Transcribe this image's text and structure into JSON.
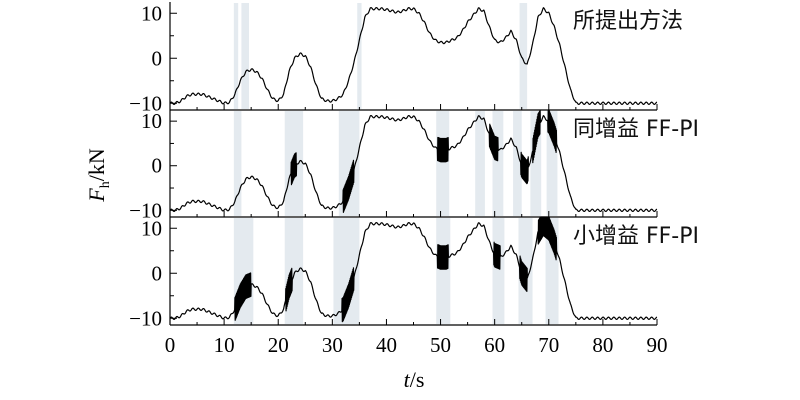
{
  "chart_data": {
    "type": "line",
    "xlabel": {
      "var": "t",
      "unit": "/s"
    },
    "ylabel": {
      "var": "F",
      "sub": "h",
      "unit": "/kN"
    },
    "x_ticks": [
      0,
      10,
      20,
      30,
      40,
      50,
      60,
      70,
      80,
      90
    ],
    "xlim": [
      0,
      90
    ],
    "y_ticks": [
      -10,
      0,
      10
    ],
    "y_tick_labels": [
      "−10",
      "0",
      "10"
    ],
    "ylim": [
      -11.5,
      12.5
    ],
    "grid": false,
    "panels": [
      {
        "name": "所提出方法",
        "highlight_regions": [
          [
            11.8,
            12.6
          ],
          [
            13.2,
            14.6
          ],
          [
            34.6,
            35.4
          ],
          [
            64.6,
            66.0
          ]
        ],
        "chatter_regions": [],
        "series": {
          "x": [
            0,
            1,
            2,
            3,
            4,
            5,
            6,
            7,
            8,
            9,
            10,
            11,
            12,
            13,
            14,
            15,
            16,
            17,
            18,
            19,
            20,
            21,
            22,
            23,
            24,
            25,
            26,
            27,
            28,
            29,
            30,
            31,
            32,
            33,
            34,
            35,
            36,
            37,
            38,
            39,
            40,
            41,
            42,
            43,
            44,
            45,
            46,
            47,
            48,
            49,
            50,
            51,
            52,
            53,
            54,
            55,
            56,
            57,
            58,
            59,
            60,
            61,
            62,
            63,
            64,
            65,
            66,
            67,
            68,
            69,
            70,
            71,
            72,
            73,
            74,
            75,
            76,
            77,
            78,
            79,
            80,
            81,
            82,
            83,
            84,
            85,
            86,
            87,
            88,
            89,
            90
          ],
          "y": [
            -10,
            -10,
            -9.5,
            -8.5,
            -8,
            -8,
            -8,
            -8.5,
            -9,
            -9.5,
            -10,
            -9.8,
            -8,
            -5,
            -3,
            -2.5,
            -3,
            -4.5,
            -7,
            -9,
            -9.5,
            -8,
            -3,
            0,
            1,
            0.5,
            -2,
            -6,
            -9,
            -9.5,
            -9.5,
            -9,
            -8,
            -5,
            -1,
            4,
            9,
            11,
            11,
            11,
            10.8,
            10.5,
            10.2,
            10.5,
            11,
            11,
            10,
            8,
            5.5,
            4,
            3.5,
            3.5,
            4,
            4.5,
            6,
            8,
            9.5,
            11,
            10.5,
            7,
            4,
            3.5,
            4.5,
            6,
            4,
            0,
            -1.5,
            3,
            9,
            11,
            10,
            7,
            3,
            -2,
            -7,
            -10,
            -10,
            -10,
            -10,
            -10,
            -10,
            -10,
            -10,
            -10,
            -10,
            -10,
            -10,
            -10,
            -10,
            -10,
            -10
          ]
        }
      },
      {
        "name": "同增益 FF-PI",
        "highlight_regions": [
          [
            11.8,
            13.2
          ],
          [
            21.2,
            24.6
          ],
          [
            31.2,
            35.0
          ],
          [
            49.2,
            51.6
          ],
          [
            56.4,
            58.2
          ],
          [
            59.6,
            61.6
          ],
          [
            63.4,
            65.0
          ],
          [
            66.6,
            68.6
          ],
          [
            69.6,
            71.6
          ]
        ],
        "chatter_regions": [
          [
            22.4,
            23.4
          ],
          [
            32.0,
            34.0
          ],
          [
            49.4,
            51.4
          ],
          [
            59.0,
            60.6
          ],
          [
            64.8,
            66.2
          ],
          [
            67.0,
            68.4
          ],
          [
            69.8,
            71.4
          ]
        ],
        "series": {
          "x": [
            0,
            1,
            2,
            3,
            4,
            5,
            6,
            7,
            8,
            9,
            10,
            11,
            12,
            13,
            14,
            15,
            16,
            17,
            18,
            19,
            20,
            21,
            22,
            23,
            24,
            25,
            26,
            27,
            28,
            29,
            30,
            31,
            32,
            33,
            34,
            35,
            36,
            37,
            38,
            39,
            40,
            41,
            42,
            43,
            44,
            45,
            46,
            47,
            48,
            49,
            50,
            51,
            52,
            53,
            54,
            55,
            56,
            57,
            58,
            59,
            60,
            61,
            62,
            63,
            64,
            65,
            66,
            67,
            68,
            69,
            70,
            71,
            72,
            73,
            74,
            75,
            76,
            77,
            78,
            79,
            80,
            81,
            82,
            83,
            84,
            85,
            86,
            87,
            88,
            89,
            90
          ],
          "y": [
            -10,
            -10,
            -9.5,
            -8.5,
            -8,
            -8,
            -8,
            -8.5,
            -9,
            -9.5,
            -10,
            -9.8,
            -8,
            -5,
            -3,
            -2.5,
            -3,
            -4.5,
            -7,
            -9,
            -9.5,
            -8,
            -3,
            0,
            1,
            0.5,
            -2,
            -6,
            -9,
            -9.5,
            -9.5,
            -9,
            -8,
            -5,
            -1,
            4,
            9,
            11,
            11,
            11,
            10.8,
            10.5,
            10.2,
            10.5,
            11,
            11,
            10,
            8,
            5.5,
            4,
            3.5,
            3.5,
            4,
            4.5,
            6,
            8,
            9.5,
            11,
            10.5,
            7,
            4,
            3.5,
            4.5,
            6,
            4,
            0,
            -1.5,
            3,
            9,
            11,
            10,
            7,
            3,
            -2,
            -7,
            -10,
            -10,
            -10,
            -10,
            -10,
            -10,
            -10,
            -10,
            -10,
            -10,
            -10,
            -10,
            -10,
            -10,
            -10,
            -10
          ]
        }
      },
      {
        "name": "小增益 FF-PI",
        "highlight_regions": [
          [
            11.8,
            15.4
          ],
          [
            21.2,
            24.6
          ],
          [
            30.2,
            35.0
          ],
          [
            49.2,
            51.8
          ],
          [
            59.6,
            61.8
          ],
          [
            64.4,
            67.0
          ],
          [
            69.4,
            71.8
          ]
        ],
        "chatter_regions": [
          [
            12.0,
            15.0
          ],
          [
            21.4,
            22.6
          ],
          [
            31.8,
            34.0
          ],
          [
            49.4,
            51.4
          ],
          [
            59.8,
            61.0
          ],
          [
            64.6,
            66.0
          ],
          [
            68.0,
            71.4
          ]
        ],
        "series": {
          "x": [
            0,
            1,
            2,
            3,
            4,
            5,
            6,
            7,
            8,
            9,
            10,
            11,
            12,
            13,
            14,
            15,
            16,
            17,
            18,
            19,
            20,
            21,
            22,
            23,
            24,
            25,
            26,
            27,
            28,
            29,
            30,
            31,
            32,
            33,
            34,
            35,
            36,
            37,
            38,
            39,
            40,
            41,
            42,
            43,
            44,
            45,
            46,
            47,
            48,
            49,
            50,
            51,
            52,
            53,
            54,
            55,
            56,
            57,
            58,
            59,
            60,
            61,
            62,
            63,
            64,
            65,
            66,
            67,
            68,
            69,
            70,
            71,
            72,
            73,
            74,
            75,
            76,
            77,
            78,
            79,
            80,
            81,
            82,
            83,
            84,
            85,
            86,
            87,
            88,
            89,
            90
          ],
          "y": [
            -10,
            -10,
            -9.5,
            -8.5,
            -8,
            -8,
            -8,
            -8.5,
            -9,
            -9.5,
            -10,
            -9.8,
            -8,
            -5,
            -3,
            -2.5,
            -3,
            -4.5,
            -7,
            -9,
            -9.5,
            -8,
            -3,
            0,
            1,
            0.5,
            -2,
            -6,
            -9,
            -9.5,
            -9.5,
            -9,
            -8,
            -5,
            -1,
            4,
            9,
            11,
            11,
            11,
            10.8,
            10.5,
            10.2,
            10.5,
            11,
            11,
            10,
            8,
            5.5,
            4,
            3.5,
            3.5,
            4,
            4.5,
            6,
            8,
            9.5,
            11,
            10.5,
            7,
            4,
            3.5,
            4.5,
            6,
            4,
            0,
            -1.5,
            3,
            9,
            11,
            10,
            7,
            3,
            -2,
            -7,
            -10,
            -10,
            -10,
            -10,
            -10,
            -10,
            -10,
            -10,
            -10,
            -10,
            -10,
            -10,
            -10,
            -10,
            -10,
            -10
          ]
        }
      }
    ]
  }
}
